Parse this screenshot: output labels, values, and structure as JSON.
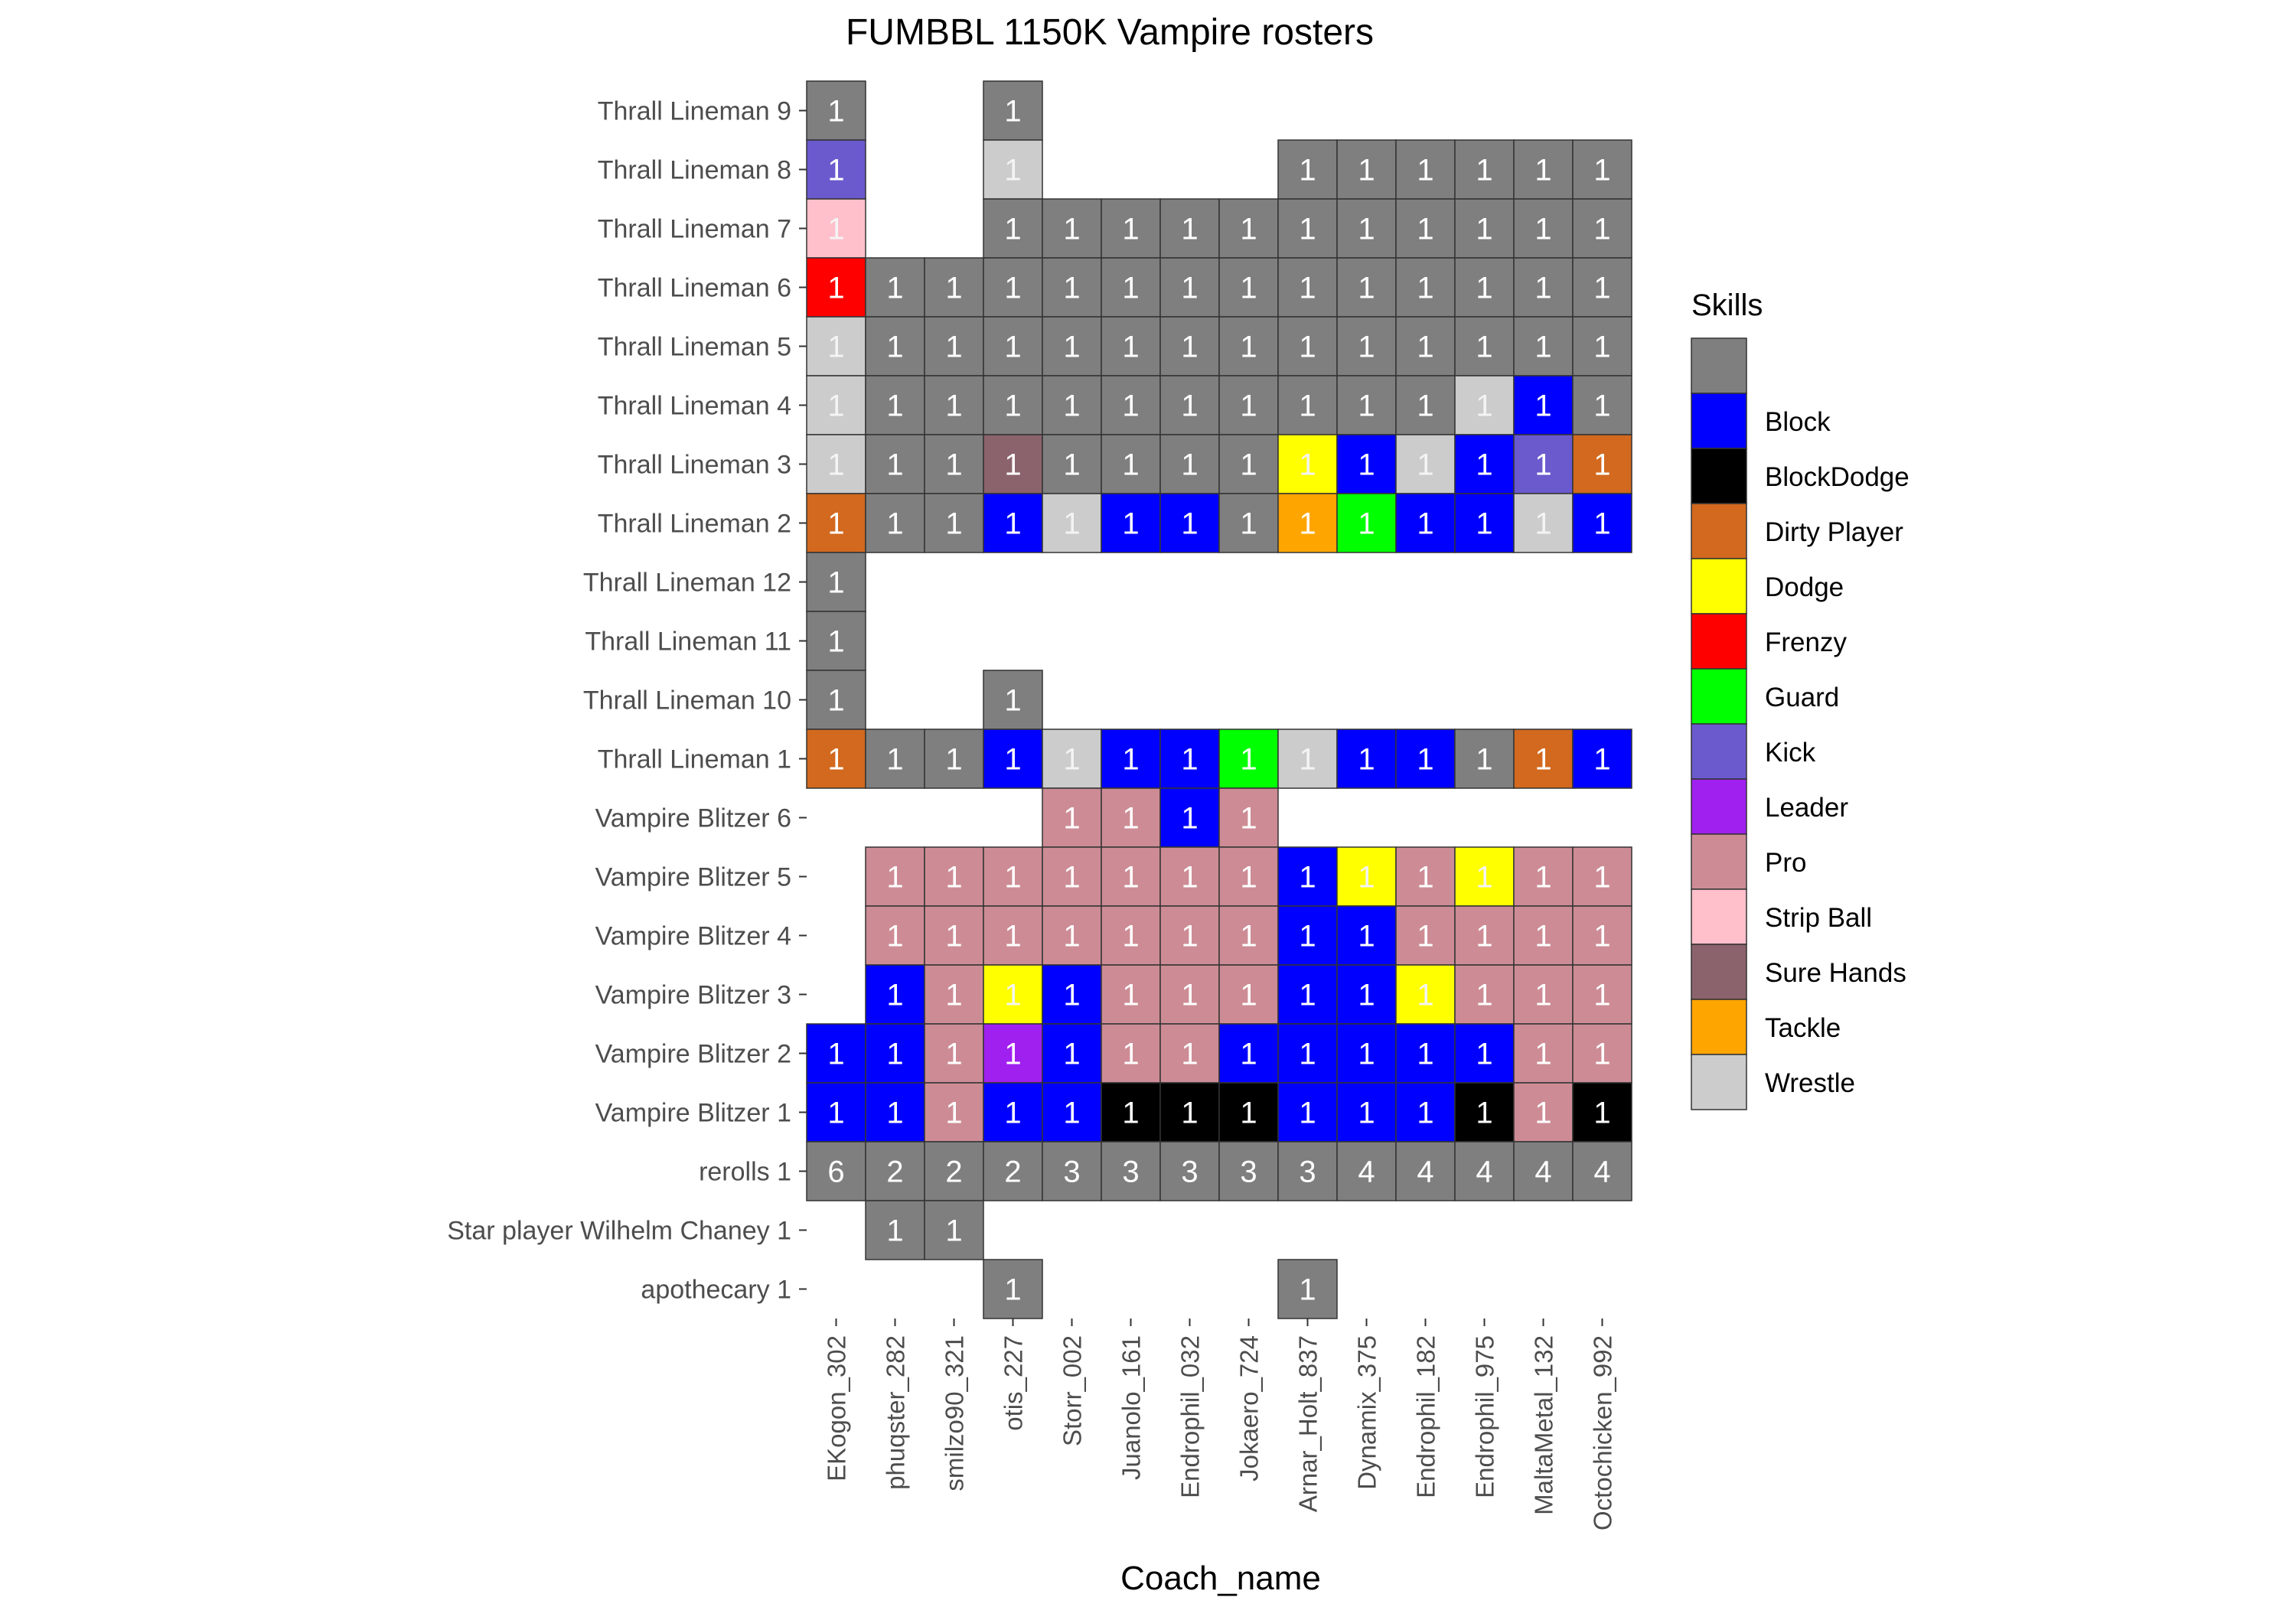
{
  "chart_data": {
    "type": "heatmap",
    "title": "FUMBBL 1150K Vampire rosters",
    "xlabel": "Coach_name",
    "ylabel": "",
    "x": [
      "EKogon_302",
      "phuqster_282",
      "smilzo90_321",
      "otis_227",
      "Storr_002",
      "Juanolo_161",
      "Endrophil_032",
      "Jokaero_724",
      "Arnar_Holt_837",
      "Dynamix_375",
      "Endrophil_182",
      "Endrophil_975",
      "MaltaMetal_132",
      "Octochicken_992"
    ],
    "y": [
      "Thrall Lineman 9",
      "Thrall Lineman 8",
      "Thrall Lineman 7",
      "Thrall Lineman 6",
      "Thrall Lineman 5",
      "Thrall Lineman 4",
      "Thrall Lineman 3",
      "Thrall Lineman 2",
      "Thrall Lineman 12",
      "Thrall Lineman 11",
      "Thrall Lineman 10",
      "Thrall Lineman 1",
      "Vampire Blitzer 6",
      "Vampire Blitzer 5",
      "Vampire Blitzer 4",
      "Vampire Blitzer 3",
      "Vampire Blitzer 2",
      "Vampire Blitzer 1",
      "rerolls 1",
      "Star player Wilhelm Chaney 1",
      "apothecary 1"
    ],
    "legend": {
      "title": "Skills",
      "position": "right",
      "entries": [
        {
          "label": "",
          "color": "#7f7f7f"
        },
        {
          "label": "Block",
          "color": "#0000ff"
        },
        {
          "label": "BlockDodge",
          "color": "#000000"
        },
        {
          "label": "Dirty Player",
          "color": "#d2691e"
        },
        {
          "label": "Dodge",
          "color": "#ffff00"
        },
        {
          "label": "Frenzy",
          "color": "#ff0000"
        },
        {
          "label": "Guard",
          "color": "#00ff00"
        },
        {
          "label": "Kick",
          "color": "#6a5acd"
        },
        {
          "label": "Leader",
          "color": "#a020f0"
        },
        {
          "label": "Pro",
          "color": "#cd8c95"
        },
        {
          "label": "Strip Ball",
          "color": "#ffc0cb"
        },
        {
          "label": "Sure Hands",
          "color": "#8b636c"
        },
        {
          "label": "Tackle",
          "color": "#ffa500"
        },
        {
          "label": "Wrestle",
          "color": "#cccccc"
        }
      ]
    },
    "grid": false,
    "rows": [
      {
        "y": "Thrall Lineman 9",
        "cells": [
          "G1",
          "",
          "",
          "G1",
          "",
          "",
          "",
          "",
          "",
          "",
          "",
          "",
          "",
          ""
        ]
      },
      {
        "y": "Thrall Lineman 8",
        "cells": [
          "K1",
          "",
          "",
          "W1",
          "",
          "",
          "",
          "",
          "G1",
          "G1",
          "G1",
          "G1",
          "G1",
          "G1"
        ]
      },
      {
        "y": "Thrall Lineman 7",
        "cells": [
          "S1",
          "",
          "",
          "G1",
          "G1",
          "G1",
          "G1",
          "G1",
          "G1",
          "G1",
          "G1",
          "G1",
          "G1",
          "G1"
        ]
      },
      {
        "y": "Thrall Lineman 6",
        "cells": [
          "F1",
          "G1",
          "G1",
          "G1",
          "G1",
          "G1",
          "G1",
          "G1",
          "G1",
          "G1",
          "G1",
          "G1",
          "G1",
          "G1"
        ]
      },
      {
        "y": "Thrall Lineman 5",
        "cells": [
          "W1",
          "G1",
          "G1",
          "G1",
          "G1",
          "G1",
          "G1",
          "G1",
          "G1",
          "G1",
          "G1",
          "G1",
          "G1",
          "G1"
        ]
      },
      {
        "y": "Thrall Lineman 4",
        "cells": [
          "W1",
          "G1",
          "G1",
          "G1",
          "G1",
          "G1",
          "G1",
          "G1",
          "G1",
          "G1",
          "G1",
          "W1",
          "B1",
          "G1"
        ]
      },
      {
        "y": "Thrall Lineman 3",
        "cells": [
          "W1",
          "G1",
          "G1",
          "H1",
          "G1",
          "G1",
          "G1",
          "G1",
          "D1",
          "B1",
          "W1",
          "B1",
          "K1",
          "R1"
        ]
      },
      {
        "y": "Thrall Lineman 2",
        "cells": [
          "R1",
          "G1",
          "G1",
          "B1",
          "W1",
          "B1",
          "B1",
          "G1",
          "T1",
          "U1",
          "B1",
          "B1",
          "W1",
          "B1"
        ]
      },
      {
        "y": "Thrall Lineman 12",
        "cells": [
          "G1",
          "",
          "",
          "",
          "",
          "",
          "",
          "",
          "",
          "",
          "",
          "",
          "",
          ""
        ]
      },
      {
        "y": "Thrall Lineman 11",
        "cells": [
          "G1",
          "",
          "",
          "",
          "",
          "",
          "",
          "",
          "",
          "",
          "",
          "",
          "",
          ""
        ]
      },
      {
        "y": "Thrall Lineman 10",
        "cells": [
          "G1",
          "",
          "",
          "G1",
          "",
          "",
          "",
          "",
          "",
          "",
          "",
          "",
          "",
          ""
        ]
      },
      {
        "y": "Thrall Lineman 1",
        "cells": [
          "R1",
          "G1",
          "G1",
          "B1",
          "W1",
          "B1",
          "B1",
          "U1",
          "W1",
          "B1",
          "B1",
          "G1",
          "R1",
          "B1"
        ]
      },
      {
        "y": "Vampire Blitzer 6",
        "cells": [
          "",
          "",
          "",
          "",
          "P1",
          "P1",
          "B1",
          "P1",
          "",
          "",
          "",
          "",
          "",
          ""
        ]
      },
      {
        "y": "Vampire Blitzer 5",
        "cells": [
          "",
          "P1",
          "P1",
          "P1",
          "P1",
          "P1",
          "P1",
          "P1",
          "B1",
          "D1",
          "P1",
          "D1",
          "P1",
          "P1"
        ]
      },
      {
        "y": "Vampire Blitzer 4",
        "cells": [
          "",
          "P1",
          "P1",
          "P1",
          "P1",
          "P1",
          "P1",
          "P1",
          "B1",
          "B1",
          "P1",
          "P1",
          "P1",
          "P1"
        ]
      },
      {
        "y": "Vampire Blitzer 3",
        "cells": [
          "",
          "B1",
          "P1",
          "D1",
          "B1",
          "P1",
          "P1",
          "P1",
          "B1",
          "B1",
          "D1",
          "P1",
          "P1",
          "P1"
        ]
      },
      {
        "y": "Vampire Blitzer 2",
        "cells": [
          "B1",
          "B1",
          "P1",
          "L1",
          "B1",
          "P1",
          "P1",
          "B1",
          "B1",
          "B1",
          "B1",
          "B1",
          "P1",
          "P1"
        ]
      },
      {
        "y": "Vampire Blitzer 1",
        "cells": [
          "B1",
          "B1",
          "P1",
          "B1",
          "B1",
          "X1",
          "X1",
          "X1",
          "B1",
          "B1",
          "B1",
          "X1",
          "P1",
          "X1"
        ]
      },
      {
        "y": "rerolls 1",
        "cells": [
          "G6",
          "G2",
          "G2",
          "G2",
          "G3",
          "G3",
          "G3",
          "G3",
          "G3",
          "G4",
          "G4",
          "G4",
          "G4",
          "G4"
        ]
      },
      {
        "y": "Star player Wilhelm Chaney 1",
        "cells": [
          "",
          "G1",
          "G1",
          "",
          "",
          "",
          "",
          "",
          "",
          "",
          "",
          "",
          "",
          ""
        ]
      },
      {
        "y": "apothecary 1",
        "cells": [
          "",
          "",
          "",
          "G1",
          "",
          "",
          "",
          "",
          "G1",
          "",
          "",
          "",
          "",
          ""
        ]
      }
    ],
    "codes": {
      "G": "",
      "B": "Block",
      "X": "BlockDodge",
      "R": "Dirty Player",
      "D": "Dodge",
      "F": "Frenzy",
      "U": "Guard",
      "K": "Kick",
      "L": "Leader",
      "P": "Pro",
      "S": "Strip Ball",
      "H": "Sure Hands",
      "T": "Tackle",
      "W": "Wrestle"
    }
  }
}
